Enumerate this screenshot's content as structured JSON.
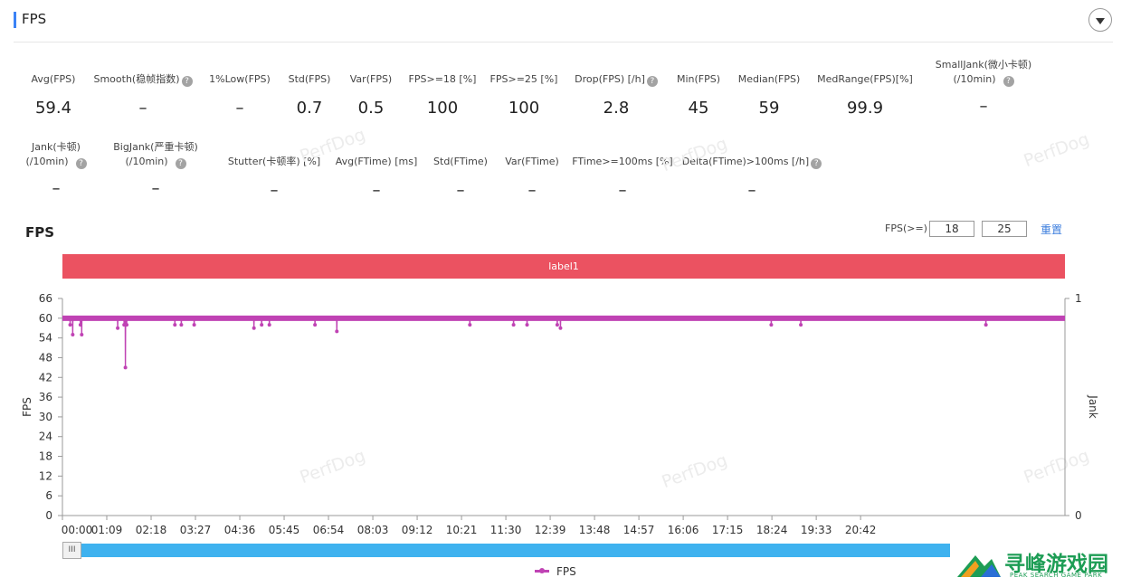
{
  "header": {
    "title": "FPS"
  },
  "stats_row1": [
    {
      "label": "Avg(FPS)",
      "value": "59.4",
      "help": false
    },
    {
      "label": "Smooth(稳帧指数)",
      "value": "–",
      "help": true
    },
    {
      "label": "1%Low(FPS)",
      "value": "–",
      "help": false
    },
    {
      "label": "Std(FPS)",
      "value": "0.7",
      "help": false
    },
    {
      "label": "Var(FPS)",
      "value": "0.5",
      "help": false
    },
    {
      "label": "FPS>=18 [%]",
      "value": "100",
      "help": false
    },
    {
      "label": "FPS>=25 [%]",
      "value": "100",
      "help": false
    },
    {
      "label": "Drop(FPS) [/h]",
      "value": "2.8",
      "help": true
    },
    {
      "label": "Min(FPS)",
      "value": "45",
      "help": false
    },
    {
      "label": "Median(FPS)",
      "value": "59",
      "help": false
    },
    {
      "label": "MedRange(FPS)[%]",
      "value": "99.9",
      "help": false
    },
    {
      "label": "SmallJank(微小卡顿)",
      "label2": "(/10min)",
      "value": "–",
      "help": true
    }
  ],
  "stats_row2": [
    {
      "label": "Jank(卡顿)",
      "label2": "(/10min)",
      "value": "–",
      "help": true
    },
    {
      "label": "BigJank(严重卡顿)",
      "label2": "(/10min)",
      "value": "–",
      "help": true
    },
    {
      "label": "Stutter(卡顿率) [%]",
      "value": "–",
      "help": false
    },
    {
      "label": "Avg(FTime) [ms]",
      "value": "–",
      "help": false
    },
    {
      "label": "Std(FTime)",
      "value": "–",
      "help": false
    },
    {
      "label": "Var(FTime)",
      "value": "–",
      "help": false
    },
    {
      "label": "FTime>=100ms [%]",
      "value": "–",
      "help": false
    },
    {
      "label": "Delta(FTime)>100ms [/h]",
      "value": "–",
      "help": true
    }
  ],
  "watermark": "PerfDog",
  "chart_header": {
    "title": "FPS",
    "threshold_label": "FPS(>=)",
    "threshold_1": "18",
    "threshold_2": "25",
    "reset_label": "重置"
  },
  "label_bar": {
    "text": "label1"
  },
  "legend": {
    "series_name": "FPS"
  },
  "slider": {
    "handle_glyph": "III",
    "position": 0.0
  },
  "logo": {
    "name": "寻峰游戏园",
    "sub": "PEAK SEARCH GAME PARK"
  },
  "colors": {
    "series": "#c043b4",
    "label_bar": "#eb5261",
    "slider": "#3fb2ef",
    "accent": "#3b82f6"
  },
  "chart_data": {
    "type": "line",
    "title": "FPS",
    "ylabel": "FPS",
    "ylabel_right": "Jank",
    "y_ticks": [
      "0",
      "6",
      "12",
      "18",
      "24",
      "30",
      "36",
      "42",
      "48",
      "54",
      "60",
      "66"
    ],
    "y_right_ticks": [
      "0",
      "1"
    ],
    "ylim": [
      0,
      66
    ],
    "x_ticks": [
      "00:00",
      "01:09",
      "02:18",
      "03:27",
      "04:36",
      "05:45",
      "06:54",
      "08:03",
      "09:12",
      "10:21",
      "11:30",
      "12:39",
      "13:48",
      "14:57",
      "16:06",
      "17:15",
      "18:24",
      "19:33",
      "20:42"
    ],
    "x_range_seconds": [
      0,
      1560
    ],
    "series": [
      {
        "name": "FPS",
        "baseline": 60,
        "dips": [
          {
            "t": 12,
            "fps": 58
          },
          {
            "t": 16,
            "fps": 55
          },
          {
            "t": 28,
            "fps": 58
          },
          {
            "t": 30,
            "fps": 55
          },
          {
            "t": 86,
            "fps": 57
          },
          {
            "t": 96,
            "fps": 58
          },
          {
            "t": 98,
            "fps": 45
          },
          {
            "t": 100,
            "fps": 58
          },
          {
            "t": 175,
            "fps": 58
          },
          {
            "t": 185,
            "fps": 58
          },
          {
            "t": 205,
            "fps": 58
          },
          {
            "t": 298,
            "fps": 57
          },
          {
            "t": 310,
            "fps": 58
          },
          {
            "t": 322,
            "fps": 58
          },
          {
            "t": 393,
            "fps": 58
          },
          {
            "t": 427,
            "fps": 56
          },
          {
            "t": 634,
            "fps": 58
          },
          {
            "t": 702,
            "fps": 58
          },
          {
            "t": 723,
            "fps": 58
          },
          {
            "t": 770,
            "fps": 58
          },
          {
            "t": 775,
            "fps": 57
          },
          {
            "t": 1103,
            "fps": 58
          },
          {
            "t": 1149,
            "fps": 58
          },
          {
            "t": 1437,
            "fps": 58
          }
        ]
      }
    ]
  }
}
